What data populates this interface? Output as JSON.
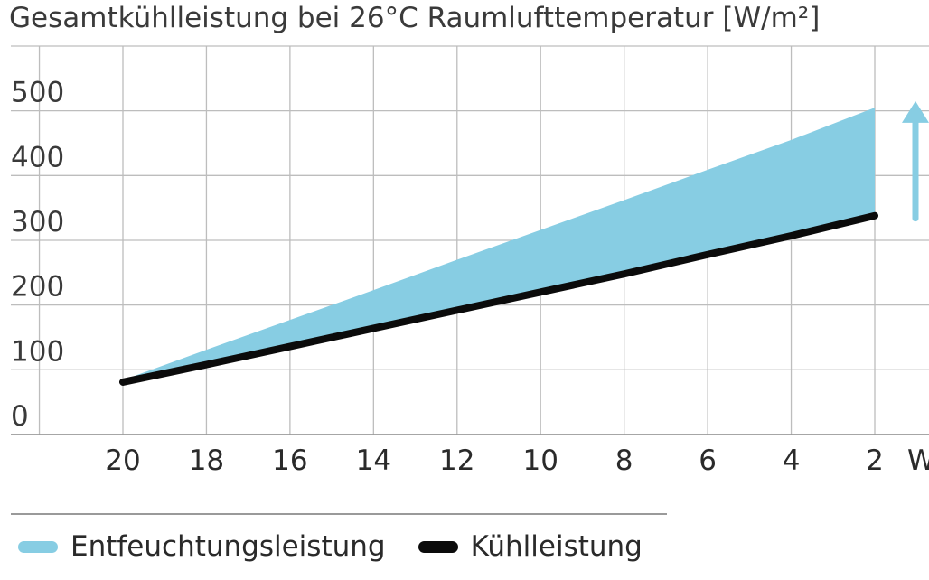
{
  "chart_data": {
    "type": "area",
    "title": "Gesamtkühlleistung bei 26°C Raumlufttemperatur [W/m²]",
    "x": [
      20,
      18,
      16,
      14,
      12,
      10,
      8,
      6,
      4,
      2
    ],
    "xlim": [
      20,
      2
    ],
    "ylim": [
      0,
      500
    ],
    "x_ticks": [
      "20",
      "18",
      "16",
      "14",
      "12",
      "10",
      "8",
      "6",
      "4",
      "2"
    ],
    "y_ticks": [
      "0",
      "100",
      "200",
      "300",
      "400",
      "500"
    ],
    "x_unit_fragment": "W",
    "grid": true,
    "legend_position": "bottom",
    "series": [
      {
        "name": "Entfeuchtungsleistung",
        "kind": "band",
        "color": "#87cde3",
        "lower": [
          81,
          108,
          136,
          164,
          192,
          220,
          248,
          278,
          307,
          338
        ],
        "upper": [
          84,
          131,
          177,
          223,
          270,
          316,
          362,
          409,
          455,
          505
        ]
      },
      {
        "name": "Kühlleistung",
        "kind": "line",
        "color": "#0b0b0b",
        "values": [
          81,
          108,
          136,
          164,
          192,
          220,
          248,
          278,
          307,
          338
        ]
      }
    ],
    "annotations": [
      {
        "type": "arrow",
        "direction": "up",
        "color": "#87cde3",
        "from_y": 334,
        "to_y": 515
      }
    ]
  }
}
